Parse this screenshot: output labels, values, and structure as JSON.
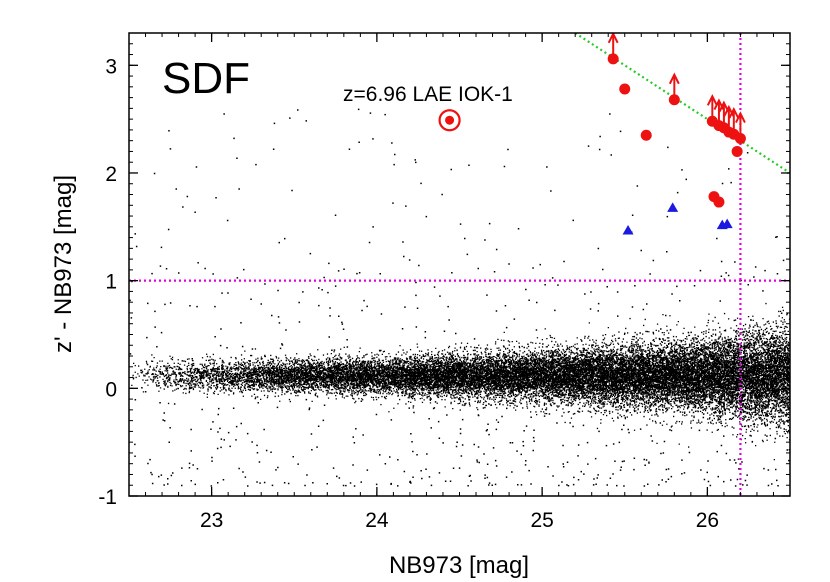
{
  "chart_data": {
    "type": "scatter",
    "title": "SDF",
    "xlabel": "NB973 [mag]",
    "ylabel": "z' - NB973 [mag]",
    "xlim": [
      22.5,
      26.5
    ],
    "ylim": [
      -1,
      3.3
    ],
    "xticks": [
      23,
      24,
      25,
      26
    ],
    "yticks": [
      -1,
      0,
      1,
      2,
      3
    ],
    "xtick_labels": [
      "23",
      "24",
      "25",
      "26"
    ],
    "ytick_labels": [
      "-1",
      "0",
      "1",
      "2",
      "3"
    ],
    "grid": false,
    "annotation": {
      "text": "z=6.96 LAE IOK-1",
      "target": {
        "x": 24.44,
        "y": 2.49
      }
    },
    "reference_lines": [
      {
        "name": "color-cut",
        "orientation": "horizontal",
        "value": 1.0,
        "color": "#e100e1",
        "style": "dotted"
      },
      {
        "name": "magnitude-limit",
        "orientation": "vertical",
        "value": 26.2,
        "color": "#e100e1",
        "style": "dotted"
      },
      {
        "name": "detection-limit-curve",
        "orientation": "diagonal",
        "from": {
          "x": 25.2,
          "y": 3.3
        },
        "to": {
          "x": 26.5,
          "y": 2.0
        },
        "color": "#22cc22",
        "style": "dotted"
      }
    ],
    "series": [
      {
        "name": "all-objects",
        "color": "#000000",
        "marker": "dot",
        "description": "dense cloud of field objects, scatter widening toward faint magnitudes"
      },
      {
        "name": "candidates",
        "color": "#ee1111",
        "marker": "circle",
        "points": [
          {
            "x": 25.43,
            "y": 3.06
          },
          {
            "x": 25.5,
            "y": 2.78
          },
          {
            "x": 25.63,
            "y": 2.35
          },
          {
            "x": 25.8,
            "y": 2.68
          },
          {
            "x": 26.03,
            "y": 2.48
          },
          {
            "x": 26.07,
            "y": 2.44
          },
          {
            "x": 26.1,
            "y": 2.42
          },
          {
            "x": 26.13,
            "y": 2.38
          },
          {
            "x": 26.16,
            "y": 2.36
          },
          {
            "x": 26.2,
            "y": 2.32
          },
          {
            "x": 26.18,
            "y": 2.2
          },
          {
            "x": 26.04,
            "y": 1.78
          },
          {
            "x": 26.07,
            "y": 1.73
          }
        ]
      },
      {
        "name": "lower-limits",
        "color": "#ee1111",
        "marker": "up-arrow",
        "points": [
          {
            "x": 25.43,
            "y": 3.06
          },
          {
            "x": 25.8,
            "y": 2.68
          },
          {
            "x": 26.03,
            "y": 2.48
          },
          {
            "x": 26.07,
            "y": 2.44
          },
          {
            "x": 26.1,
            "y": 2.42
          },
          {
            "x": 26.13,
            "y": 2.38
          },
          {
            "x": 26.16,
            "y": 2.36
          },
          {
            "x": 26.2,
            "y": 2.32
          }
        ]
      },
      {
        "name": "other-objects",
        "color": "#1a1ae0",
        "marker": "triangle",
        "points": [
          {
            "x": 25.52,
            "y": 1.47
          },
          {
            "x": 25.79,
            "y": 1.68
          },
          {
            "x": 26.09,
            "y": 1.52
          },
          {
            "x": 26.12,
            "y": 1.53
          }
        ]
      },
      {
        "name": "IOK-1",
        "color": "#ee1111",
        "marker": "bullseye",
        "points": [
          {
            "x": 24.44,
            "y": 2.49
          }
        ]
      }
    ]
  }
}
